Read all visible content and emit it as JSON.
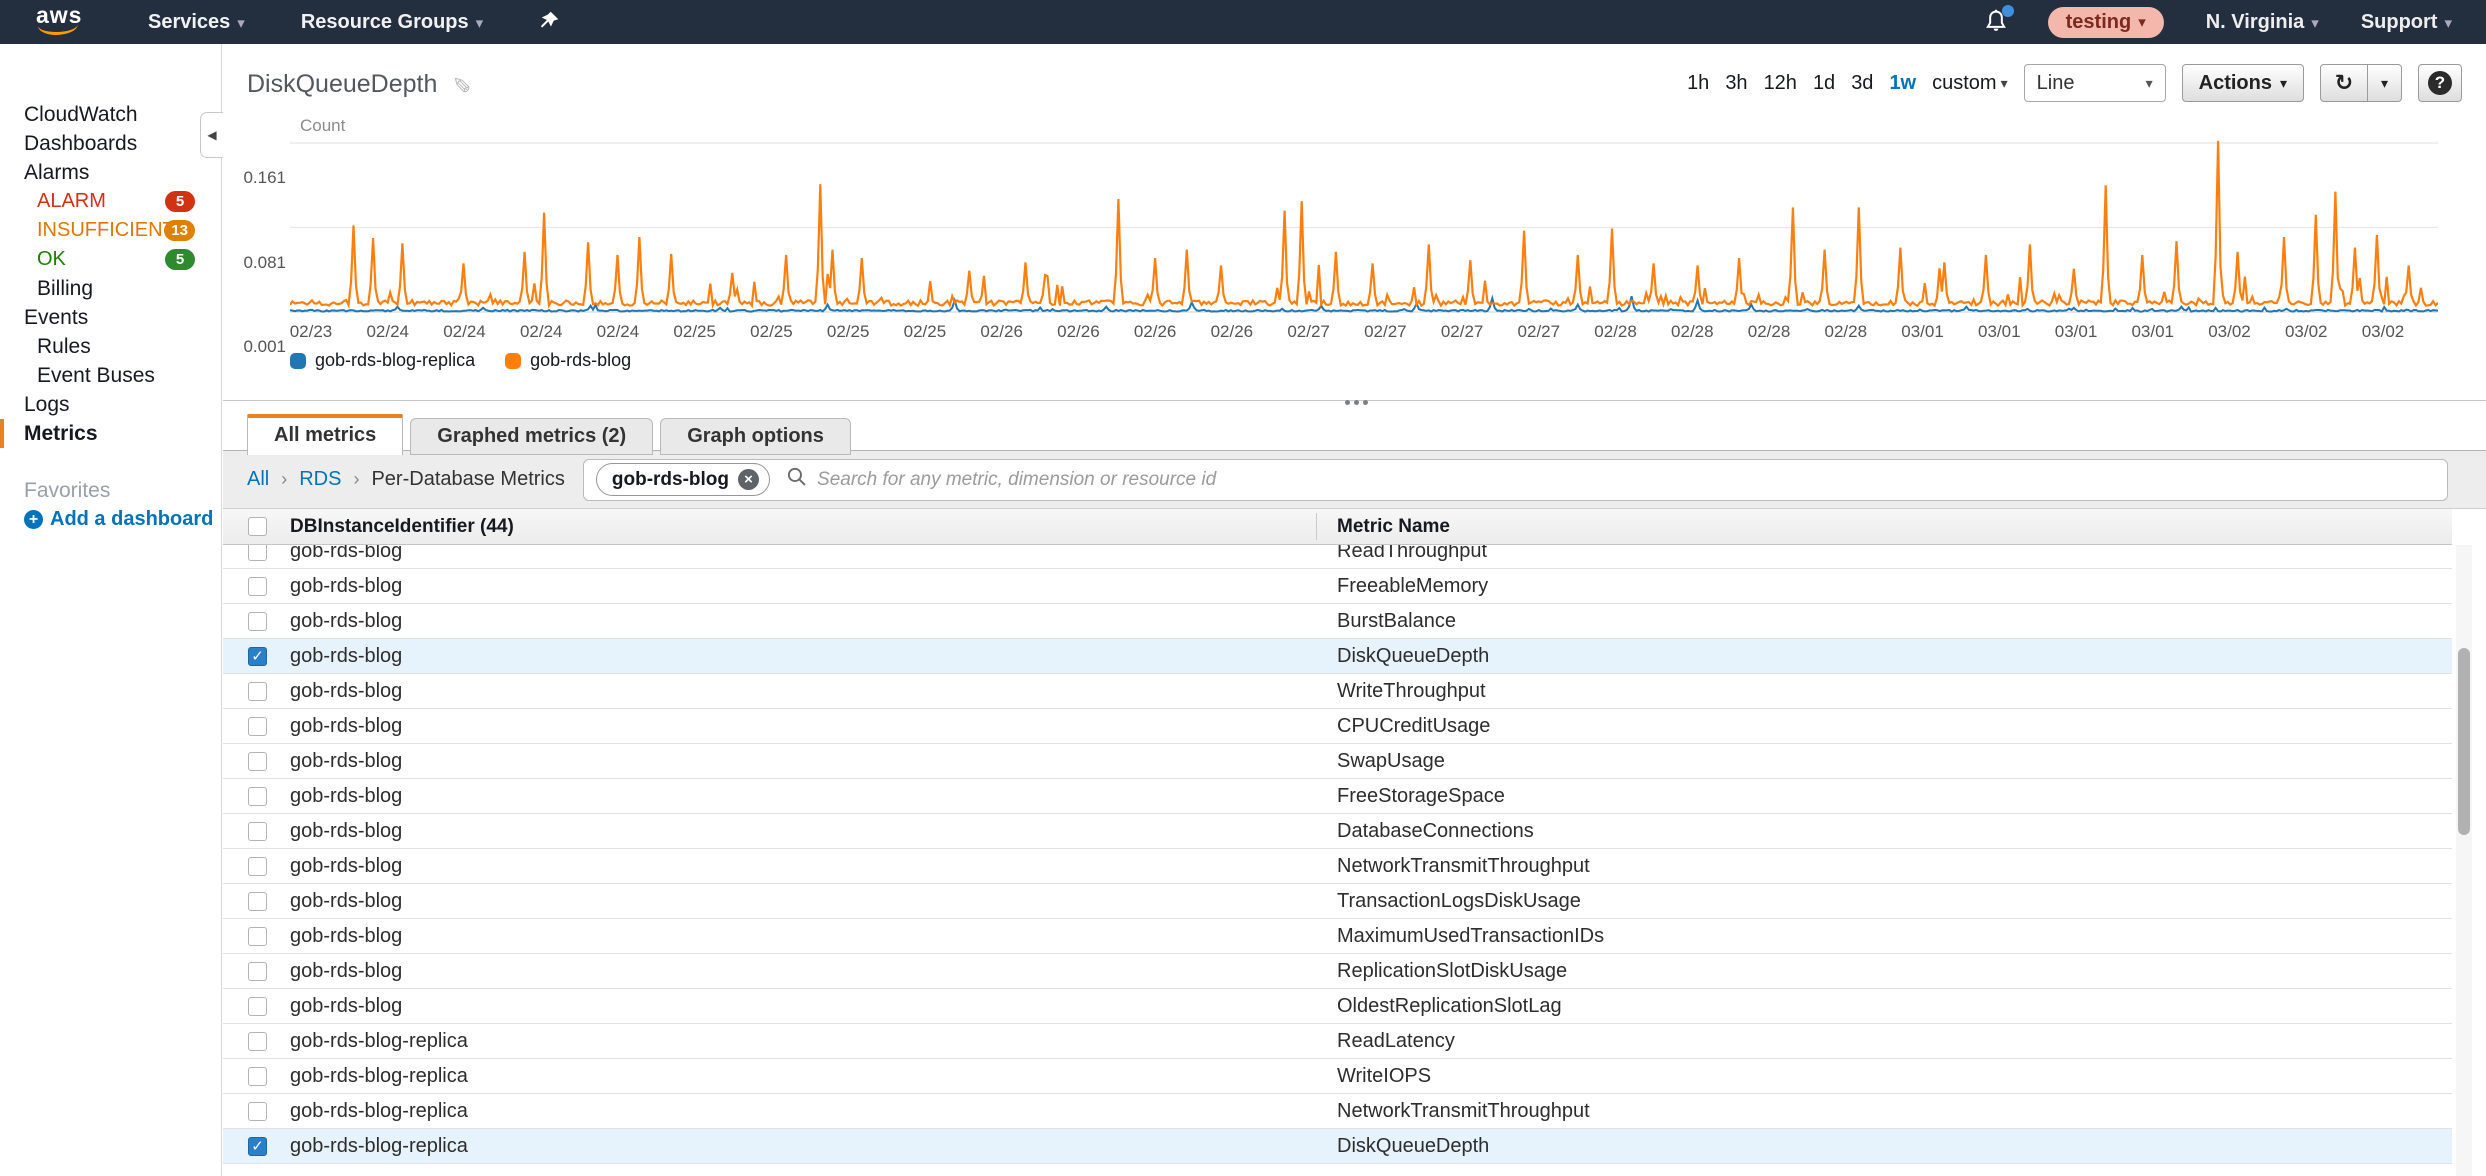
{
  "topnav": {
    "logo": "aws",
    "menus": [
      {
        "label": "Services"
      },
      {
        "label": "Resource Groups"
      }
    ],
    "account_badge": "testing",
    "region": "N. Virginia",
    "support": "Support"
  },
  "sidebar": {
    "items": [
      {
        "label": "CloudWatch",
        "type": "root"
      },
      {
        "label": "Dashboards",
        "type": "root"
      },
      {
        "label": "Alarms",
        "type": "root"
      },
      {
        "label": "ALARM",
        "type": "alarm",
        "badge": "5",
        "color": "#d13212",
        "badge_color": "#d13212"
      },
      {
        "label": "INSUFFICIENT",
        "type": "alarm",
        "badge": "13",
        "color": "#e07700",
        "badge_color": "#e08000"
      },
      {
        "label": "OK",
        "type": "alarm",
        "badge": "5",
        "color": "#1d8102",
        "badge_color": "#2d8a2d"
      },
      {
        "label": "Billing",
        "type": "sub"
      },
      {
        "label": "Events",
        "type": "root"
      },
      {
        "label": "Rules",
        "type": "sub"
      },
      {
        "label": "Event Buses",
        "type": "sub"
      },
      {
        "label": "Logs",
        "type": "root"
      },
      {
        "label": "Metrics",
        "type": "root",
        "active": true
      }
    ],
    "favorites_label": "Favorites",
    "add_dashboard_label": "Add a dashboard"
  },
  "graph_header": {
    "title": "DiskQueueDepth",
    "ranges": [
      "1h",
      "3h",
      "12h",
      "1d",
      "3d",
      "1w"
    ],
    "active_range": "1w",
    "custom_label": "custom",
    "chart_type": "Line",
    "actions_label": "Actions"
  },
  "chart_data": {
    "type": "line",
    "ylabel": "Count",
    "grid": true,
    "legend_position": "bottom",
    "ylim": [
      0.001,
      0.161
    ],
    "yticks": [
      0.161,
      0.081,
      0.001
    ],
    "xticks": [
      "02/23",
      "02/24",
      "02/24",
      "02/24",
      "02/24",
      "02/25",
      "02/25",
      "02/25",
      "02/25",
      "02/26",
      "02/26",
      "02/26",
      "02/26",
      "02/27",
      "02/27",
      "02/27",
      "02/27",
      "02/28",
      "02/28",
      "02/28",
      "02/28",
      "03/01",
      "03/01",
      "03/01",
      "03/01",
      "03/02",
      "03/02",
      "03/02"
    ],
    "series": [
      {
        "name": "gob-rds-blog-replica",
        "color": "#1f77b4",
        "baseline": 0.0022,
        "noise": 0.0008,
        "minor_spike_rate": 0.04,
        "minor_spike_max": 0.006,
        "spikes": [
          [
            0.05,
            0.006
          ],
          [
            0.09,
            0.005
          ],
          [
            0.14,
            0.007
          ],
          [
            0.2,
            0.005
          ],
          [
            0.25,
            0.008
          ],
          [
            0.31,
            0.012
          ],
          [
            0.38,
            0.006
          ],
          [
            0.42,
            0.01
          ],
          [
            0.48,
            0.007
          ],
          [
            0.525,
            0.009
          ],
          [
            0.56,
            0.014
          ],
          [
            0.6,
            0.008
          ],
          [
            0.625,
            0.016
          ],
          [
            0.655,
            0.012
          ],
          [
            0.68,
            0.008
          ],
          [
            0.73,
            0.007
          ],
          [
            0.78,
            0.006
          ],
          [
            0.83,
            0.005
          ],
          [
            0.88,
            0.006
          ],
          [
            0.93,
            0.004
          ]
        ]
      },
      {
        "name": "gob-rds-blog",
        "color": "#ff7f0e",
        "baseline": 0.0095,
        "noise": 0.0025,
        "minor_spike_rate": 0.11,
        "minor_spike_max": 0.045,
        "spikes": [
          [
            0.03,
            0.083
          ],
          [
            0.039,
            0.071
          ],
          [
            0.052,
            0.066
          ],
          [
            0.081,
            0.047
          ],
          [
            0.109,
            0.058
          ],
          [
            0.118,
            0.095
          ],
          [
            0.139,
            0.067
          ],
          [
            0.153,
            0.055
          ],
          [
            0.163,
            0.072
          ],
          [
            0.178,
            0.056
          ],
          [
            0.206,
            0.038
          ],
          [
            0.231,
            0.055
          ],
          [
            0.247,
            0.122
          ],
          [
            0.252,
            0.06
          ],
          [
            0.266,
            0.052
          ],
          [
            0.316,
            0.04
          ],
          [
            0.342,
            0.048
          ],
          [
            0.352,
            0.036
          ],
          [
            0.386,
            0.108
          ],
          [
            0.403,
            0.052
          ],
          [
            0.417,
            0.06
          ],
          [
            0.433,
            0.045
          ],
          [
            0.463,
            0.097
          ],
          [
            0.471,
            0.106
          ],
          [
            0.487,
            0.058
          ],
          [
            0.504,
            0.047
          ],
          [
            0.53,
            0.065
          ],
          [
            0.55,
            0.05
          ],
          [
            0.575,
            0.078
          ],
          [
            0.6,
            0.055
          ],
          [
            0.615,
            0.08
          ],
          [
            0.635,
            0.047
          ],
          [
            0.655,
            0.045
          ],
          [
            0.675,
            0.052
          ],
          [
            0.7,
            0.1
          ],
          [
            0.715,
            0.06
          ],
          [
            0.73,
            0.1
          ],
          [
            0.75,
            0.062
          ],
          [
            0.77,
            0.048
          ],
          [
            0.79,
            0.055
          ],
          [
            0.81,
            0.065
          ],
          [
            0.83,
            0.042
          ],
          [
            0.845,
            0.121
          ],
          [
            0.862,
            0.055
          ],
          [
            0.878,
            0.068
          ],
          [
            0.898,
            0.163
          ],
          [
            0.907,
            0.058
          ],
          [
            0.928,
            0.072
          ],
          [
            0.943,
            0.093
          ],
          [
            0.952,
            0.115
          ],
          [
            0.961,
            0.062
          ],
          [
            0.972,
            0.074
          ],
          [
            0.986,
            0.045
          ]
        ]
      }
    ]
  },
  "panel": {
    "tabs": [
      {
        "label": "All metrics",
        "active": true
      },
      {
        "label": "Graphed metrics (2)",
        "active": false
      },
      {
        "label": "Graph options",
        "active": false
      }
    ],
    "breadcrumb": {
      "links": [
        "All",
        "RDS"
      ],
      "current": "Per-Database Metrics",
      "filter_tag": "gob-rds-blog"
    },
    "search_placeholder": "Search for any metric, dimension or resource id",
    "table": {
      "columns": [
        "DBInstanceIdentifier (44)",
        "Metric Name"
      ],
      "rows": [
        {
          "instance": "gob-rds-blog",
          "metric": "ReadThroughput",
          "checked": false
        },
        {
          "instance": "gob-rds-blog",
          "metric": "FreeableMemory",
          "checked": false
        },
        {
          "instance": "gob-rds-blog",
          "metric": "BurstBalance",
          "checked": false
        },
        {
          "instance": "gob-rds-blog",
          "metric": "DiskQueueDepth",
          "checked": true
        },
        {
          "instance": "gob-rds-blog",
          "metric": "WriteThroughput",
          "checked": false
        },
        {
          "instance": "gob-rds-blog",
          "metric": "CPUCreditUsage",
          "checked": false
        },
        {
          "instance": "gob-rds-blog",
          "metric": "SwapUsage",
          "checked": false
        },
        {
          "instance": "gob-rds-blog",
          "metric": "FreeStorageSpace",
          "checked": false
        },
        {
          "instance": "gob-rds-blog",
          "metric": "DatabaseConnections",
          "checked": false
        },
        {
          "instance": "gob-rds-blog",
          "metric": "NetworkTransmitThroughput",
          "checked": false
        },
        {
          "instance": "gob-rds-blog",
          "metric": "TransactionLogsDiskUsage",
          "checked": false
        },
        {
          "instance": "gob-rds-blog",
          "metric": "MaximumUsedTransactionIDs",
          "checked": false
        },
        {
          "instance": "gob-rds-blog",
          "metric": "ReplicationSlotDiskUsage",
          "checked": false
        },
        {
          "instance": "gob-rds-blog",
          "metric": "OldestReplicationSlotLag",
          "checked": false
        },
        {
          "instance": "gob-rds-blog-replica",
          "metric": "ReadLatency",
          "checked": false
        },
        {
          "instance": "gob-rds-blog-replica",
          "metric": "WriteIOPS",
          "checked": false
        },
        {
          "instance": "gob-rds-blog-replica",
          "metric": "NetworkTransmitThroughput",
          "checked": false
        },
        {
          "instance": "gob-rds-blog-replica",
          "metric": "DiskQueueDepth",
          "checked": true
        }
      ]
    }
  }
}
